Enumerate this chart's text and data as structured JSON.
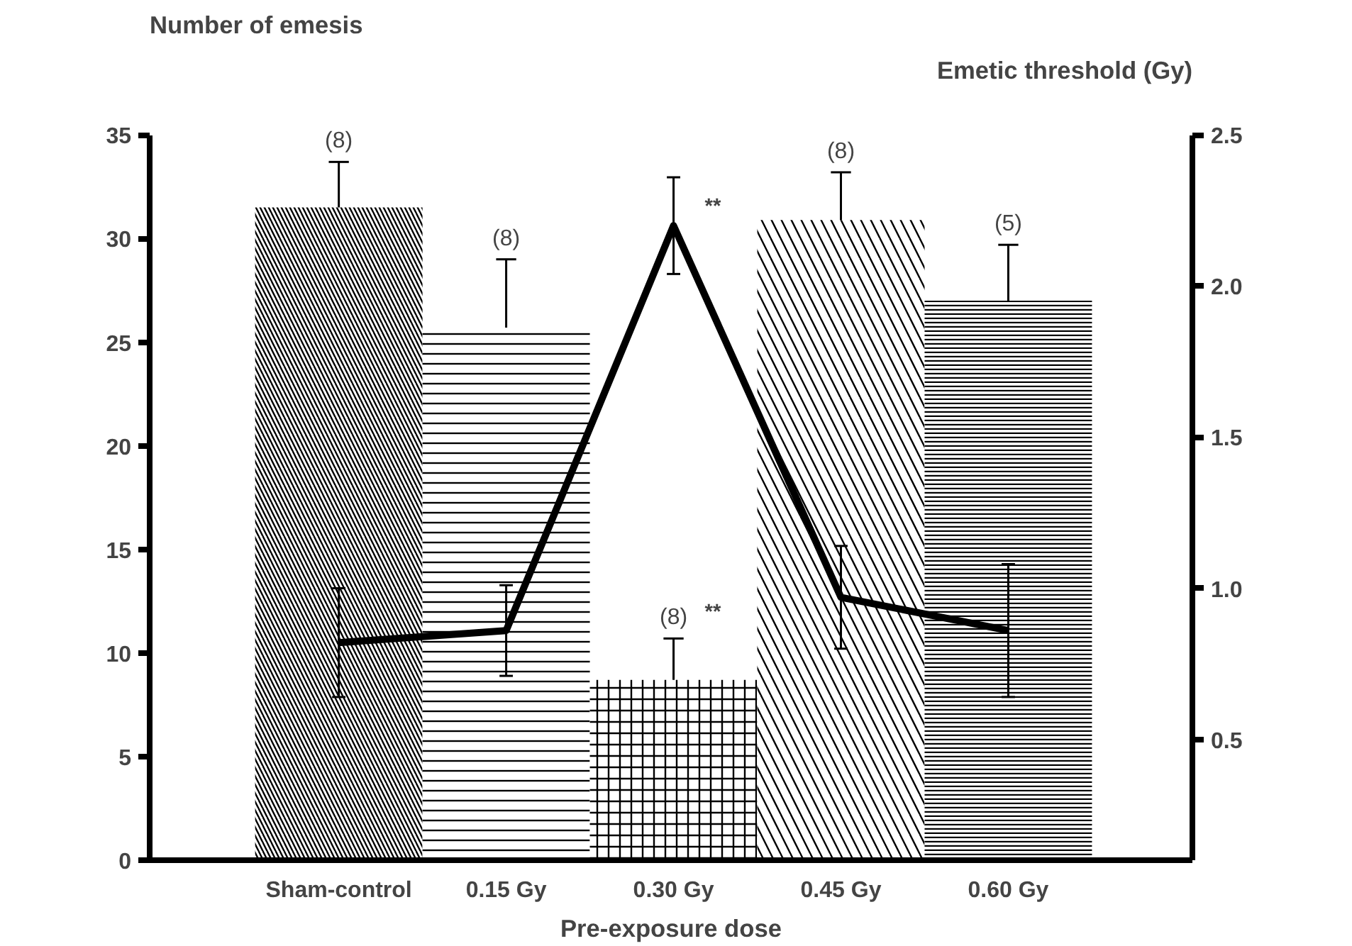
{
  "chart_data": {
    "type": "bar",
    "categories": [
      "Sham-control",
      "0.15 Gy",
      "0.30 Gy",
      "0.45 Gy",
      "0.60 Gy"
    ],
    "xlabel": "Pre-exposure dose",
    "ylabel": "Number of emesis",
    "y2label": "Emetic threshold (Gy)",
    "series": [
      {
        "color": "#000000",
        "values": [
          31.5,
          25.7,
          8.7,
          30.9,
          27.0
        ],
        "errors": [
          2.2,
          3.3,
          2.0,
          2.3,
          2.7
        ]
      },
      {
        "type": "line",
        "axis": "y2",
        "color": "#000000",
        "values": [
          0.82,
          0.86,
          2.2,
          0.97,
          0.86
        ],
        "errors": [
          0.18,
          0.15,
          0.16,
          0.17,
          0.22
        ]
      }
    ],
    "ylim": [
      0,
      35
    ],
    "yticks": [
      0,
      5,
      10,
      15,
      20,
      25,
      30,
      35
    ],
    "y2lim": [
      0.1,
      2.5
    ],
    "y2ticks": [
      0.5,
      {
        "value": 1,
        "label": "1.0"
      },
      1.5,
      {
        "value": 2,
        "label": "2.0"
      },
      2.5
    ],
    "annotations": [
      {
        "text": "(8)",
        "x": "Sham-control",
        "y": 33.7
      },
      {
        "text": "(8)",
        "x": "0.15 Gy",
        "y": 29.0
      },
      {
        "text": "(8)",
        "x": "0.30 Gy",
        "y": 10.7
      },
      {
        "text": "(8)",
        "x": "0.45 Gy",
        "y": 33.2
      },
      {
        "text": "(5)",
        "x": "0.60 Gy",
        "y": 29.7
      },
      {
        "text": "**",
        "x": "0.30 Gy",
        "y": 30.3
      },
      {
        "text": "**",
        "x": "0.30 Gy",
        "y": 10.7
      }
    ],
    "grid": false,
    "marker": "none",
    "line_style": "solid"
  }
}
